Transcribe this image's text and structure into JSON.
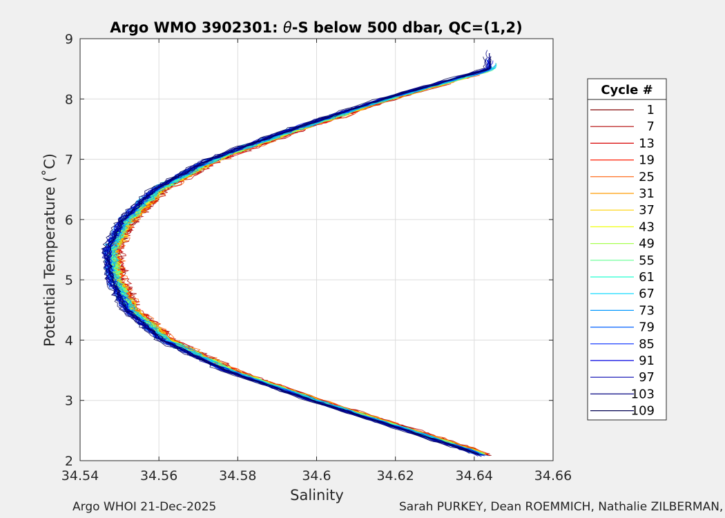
{
  "chart_data": {
    "type": "line",
    "title_prefix": "Argo WMO 3902301: ",
    "title_theta": "θ",
    "title_suffix": "-S below 500 dbar,  QC=(1,2)",
    "xlabel": "Salinity",
    "ylabel": "Potential Temperature (˚C)",
    "xlim": [
      34.54,
      34.66
    ],
    "ylim": [
      2,
      9
    ],
    "xticks": [
      34.54,
      34.56,
      34.58,
      34.6,
      34.62,
      34.64,
      34.66
    ],
    "xtick_labels": [
      "34.54",
      "34.56",
      "34.58",
      "34.6",
      "34.62",
      "34.64",
      "34.66"
    ],
    "yticks": [
      2,
      3,
      4,
      5,
      6,
      7,
      8,
      9
    ],
    "ytick_labels": [
      "2",
      "3",
      "4",
      "5",
      "6",
      "7",
      "8",
      "9"
    ],
    "grid": true,
    "legend_title": "Cycle #",
    "legend_placement": "right",
    "series": [
      {
        "name": "1",
        "color": "#800000"
      },
      {
        "name": "7",
        "color": "#b00000"
      },
      {
        "name": "13",
        "color": "#d80000"
      },
      {
        "name": "19",
        "color": "#ff1a00"
      },
      {
        "name": "25",
        "color": "#ff5a00"
      },
      {
        "name": "31",
        "color": "#ff9a00"
      },
      {
        "name": "37",
        "color": "#ffd000"
      },
      {
        "name": "43",
        "color": "#f0ff10"
      },
      {
        "name": "49",
        "color": "#a8ff50"
      },
      {
        "name": "55",
        "color": "#60ff90"
      },
      {
        "name": "61",
        "color": "#20ffd0"
      },
      {
        "name": "67",
        "color": "#00d8ff"
      },
      {
        "name": "73",
        "color": "#0098ff"
      },
      {
        "name": "79",
        "color": "#0060ff"
      },
      {
        "name": "85",
        "color": "#0028ff"
      },
      {
        "name": "91",
        "color": "#0000e0"
      },
      {
        "name": "97",
        "color": "#0000b0"
      },
      {
        "name": "103",
        "color": "#000080"
      },
      {
        "name": "109",
        "color": "#000050"
      }
    ],
    "profile_curve": [
      {
        "t": 2.05,
        "s": 34.645
      },
      {
        "t": 2.5,
        "s": 34.624
      },
      {
        "t": 3.0,
        "s": 34.6
      },
      {
        "t": 3.5,
        "s": 34.578
      },
      {
        "t": 4.0,
        "s": 34.562
      },
      {
        "t": 4.5,
        "s": 34.553
      },
      {
        "t": 5.0,
        "s": 34.549
      },
      {
        "t": 5.5,
        "s": 34.548
      },
      {
        "t": 6.0,
        "s": 34.552
      },
      {
        "t": 6.5,
        "s": 34.56
      },
      {
        "t": 7.0,
        "s": 34.574
      },
      {
        "t": 7.5,
        "s": 34.595
      },
      {
        "t": 8.0,
        "s": 34.618
      },
      {
        "t": 8.5,
        "s": 34.645
      }
    ]
  },
  "footer": {
    "left": "Argo WHOI 21-Dec-2025",
    "right": "Sarah PURKEY, Dean ROEMMICH, Nathalie ZILBERMAN, Jo"
  }
}
